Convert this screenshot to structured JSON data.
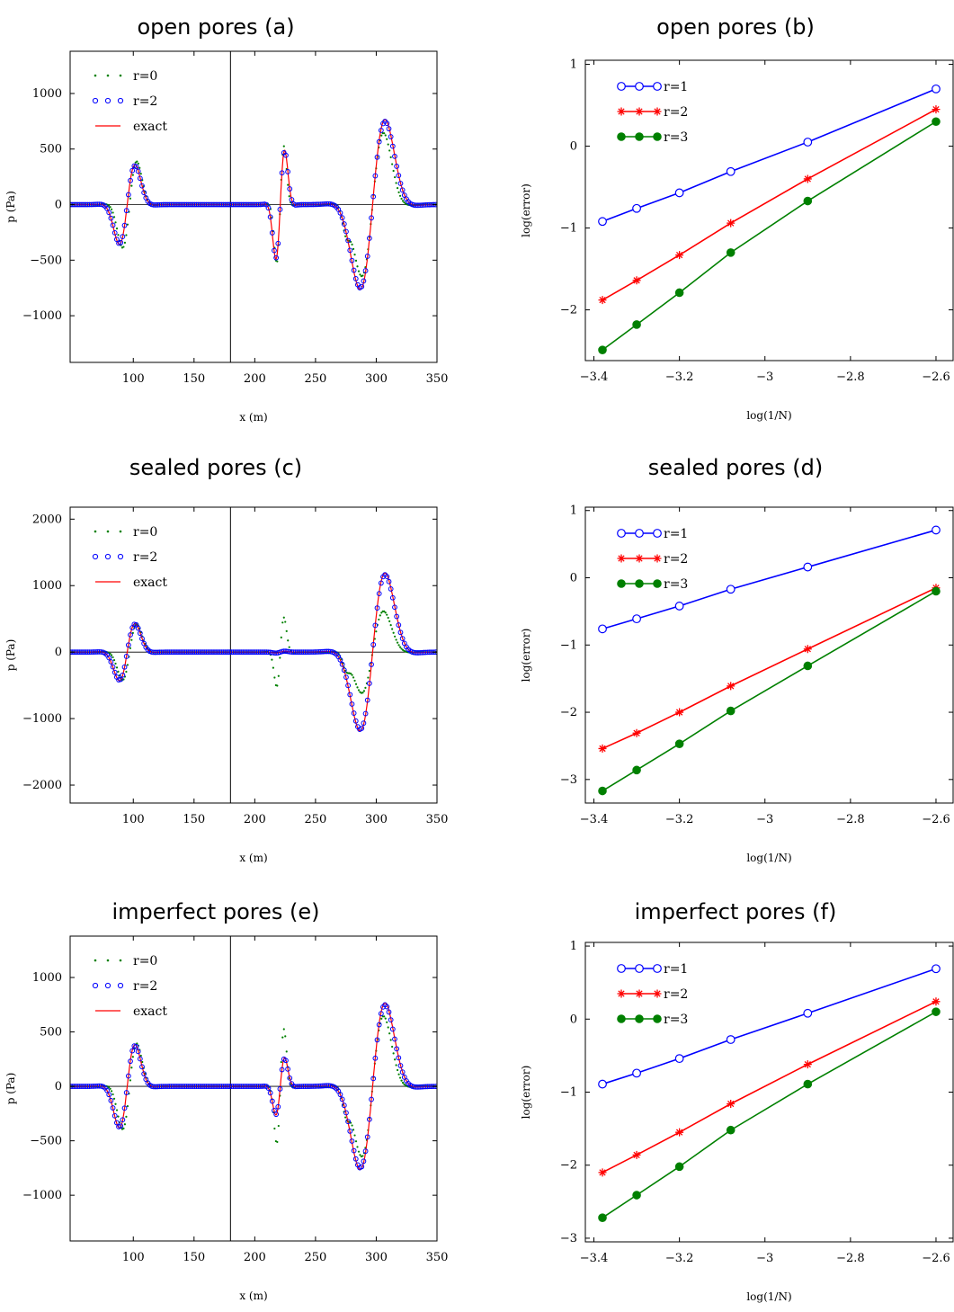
{
  "chart_data": [
    {
      "panel": "a",
      "type": "line",
      "title": "open pores (a)",
      "xlabel": "x (m)",
      "ylabel": "p (Pa)",
      "xlim": [
        48,
        350
      ],
      "ylim": [
        -1420,
        1380
      ],
      "xticks": [
        100,
        150,
        200,
        250,
        300,
        350
      ],
      "yticks": [
        -1000,
        -500,
        0,
        500,
        1000
      ],
      "vline_x": 180,
      "hline_y": 0,
      "legend_position": "top-left",
      "pulses": {
        "exact": [
          {
            "c": 95,
            "w": 7.5,
            "a": 600
          },
          {
            "c": 221,
            "w": 4.2,
            "a": 820
          },
          {
            "c": 297,
            "w": 12.0,
            "a": 1280
          }
        ],
        "r0": [
          {
            "c": 97,
            "w": 6.8,
            "a": 650
          },
          {
            "c": 221,
            "w": 3.5,
            "a": 880
          },
          {
            "c": 297,
            "w": 10.5,
            "a": 1080
          }
        ],
        "r0_extra": [
          {
            "c": 275,
            "a": -200,
            "w": 4
          }
        ],
        "r2_scale": 0.98
      },
      "series": [
        {
          "name": "r=0",
          "color": "#008000",
          "style": "dots"
        },
        {
          "name": "r=2",
          "color": "#0000ff",
          "style": "circles"
        },
        {
          "name": "exact",
          "color": "#ff0000",
          "style": "line"
        }
      ]
    },
    {
      "panel": "b",
      "type": "line",
      "title": "open pores (b)",
      "xlabel": "log(1/N)",
      "ylabel": "log(error)",
      "xlim": [
        -3.42,
        -2.56
      ],
      "ylim": [
        -2.62,
        1.05
      ],
      "xticks": [
        -3.4,
        -3.2,
        -3,
        -2.8,
        -2.6
      ],
      "xtick_labels": [
        "−3.4",
        "−3.2",
        "−3",
        "−2.8",
        "−2.6"
      ],
      "yticks": [
        -2,
        -1,
        0,
        1
      ],
      "ytick_labels": [
        "−2",
        "−1",
        "0",
        "1"
      ],
      "legend_position": "top-left",
      "x": [
        -3.38,
        -3.3,
        -3.2,
        -3.08,
        -2.9,
        -2.6
      ],
      "series": [
        {
          "name": "r=1",
          "color": "#0000ff",
          "marker": "circle-open",
          "values": [
            -0.92,
            -0.76,
            -0.57,
            -0.31,
            0.05,
            0.7
          ]
        },
        {
          "name": "r=2",
          "color": "#ff0000",
          "marker": "star",
          "values": [
            -1.88,
            -1.64,
            -1.33,
            -0.94,
            -0.4,
            0.45
          ]
        },
        {
          "name": "r=3",
          "color": "#008000",
          "marker": "circle-filled",
          "values": [
            -2.49,
            -2.18,
            -1.79,
            -1.3,
            -0.67,
            0.3
          ]
        }
      ]
    },
    {
      "panel": "c",
      "type": "line",
      "title": "sealed pores (c)",
      "xlabel": "x (m)",
      "ylabel": "p (Pa)",
      "xlim": [
        48,
        350
      ],
      "ylim": [
        -2270,
        2180
      ],
      "xticks": [
        100,
        150,
        200,
        250,
        300,
        350
      ],
      "yticks": [
        -2000,
        -1000,
        0,
        1000,
        2000
      ],
      "vline_x": 180,
      "hline_y": 0,
      "legend_position": "top-left",
      "pulses": {
        "exact": [
          {
            "c": 95,
            "w": 7.5,
            "a": 720
          },
          {
            "c": 221,
            "w": 4.2,
            "a": 25
          },
          {
            "c": 297,
            "w": 12.0,
            "a": 1990
          }
        ],
        "r0": [
          {
            "c": 97,
            "w": 6.8,
            "a": 700
          },
          {
            "c": 221,
            "w": 3.5,
            "a": 870
          },
          {
            "c": 297,
            "w": 10.5,
            "a": 1030
          }
        ],
        "r0_extra": [
          {
            "c": 275,
            "a": -200,
            "w": 4
          }
        ],
        "r2_scale": 0.98
      },
      "series": [
        {
          "name": "r=0",
          "color": "#008000",
          "style": "dots"
        },
        {
          "name": "r=2",
          "color": "#0000ff",
          "style": "circles"
        },
        {
          "name": "exact",
          "color": "#ff0000",
          "style": "line"
        }
      ]
    },
    {
      "panel": "d",
      "type": "line",
      "title": "sealed pores (d)",
      "xlabel": "log(1/N)",
      "ylabel": "log(error)",
      "xlim": [
        -3.42,
        -2.56
      ],
      "ylim": [
        -3.35,
        1.05
      ],
      "xticks": [
        -3.4,
        -3.2,
        -3,
        -2.8,
        -2.6
      ],
      "xtick_labels": [
        "−3.4",
        "−3.2",
        "−3",
        "−2.8",
        "−2.6"
      ],
      "yticks": [
        -3,
        -2,
        -1,
        0,
        1
      ],
      "ytick_labels": [
        "−3",
        "−2",
        "−1",
        "0",
        "1"
      ],
      "legend_position": "top-left",
      "x": [
        -3.38,
        -3.3,
        -3.2,
        -3.08,
        -2.9,
        -2.6
      ],
      "series": [
        {
          "name": "r=1",
          "color": "#0000ff",
          "marker": "circle-open",
          "values": [
            -0.76,
            -0.61,
            -0.42,
            -0.17,
            0.16,
            0.71
          ]
        },
        {
          "name": "r=2",
          "color": "#ff0000",
          "marker": "star",
          "values": [
            -2.54,
            -2.31,
            -2.0,
            -1.61,
            -1.06,
            -0.15
          ]
        },
        {
          "name": "r=3",
          "color": "#008000",
          "marker": "circle-filled",
          "values": [
            -3.17,
            -2.86,
            -2.47,
            -1.98,
            -1.31,
            -0.2
          ]
        }
      ]
    },
    {
      "panel": "e",
      "type": "line",
      "title": "imperfect pores (e)",
      "xlabel": "x (m)",
      "ylabel": "p (Pa)",
      "xlim": [
        48,
        350
      ],
      "ylim": [
        -1420,
        1380
      ],
      "xticks": [
        100,
        150,
        200,
        250,
        300,
        350
      ],
      "yticks": [
        -1000,
        -500,
        0,
        500,
        1000
      ],
      "vline_x": 180,
      "hline_y": 0,
      "legend_position": "top-left",
      "pulses": {
        "exact": [
          {
            "c": 95,
            "w": 7.5,
            "a": 640
          },
          {
            "c": 221,
            "w": 4.2,
            "a": 440
          },
          {
            "c": 297,
            "w": 12.0,
            "a": 1280
          }
        ],
        "r0": [
          {
            "c": 97,
            "w": 6.8,
            "a": 660
          },
          {
            "c": 221,
            "w": 3.5,
            "a": 880
          },
          {
            "c": 297,
            "w": 10.5,
            "a": 1080
          }
        ],
        "r0_extra": [
          {
            "c": 275,
            "a": -200,
            "w": 4
          }
        ],
        "r2_scale": 0.98
      },
      "series": [
        {
          "name": "r=0",
          "color": "#008000",
          "style": "dots"
        },
        {
          "name": "r=2",
          "color": "#0000ff",
          "style": "circles"
        },
        {
          "name": "exact",
          "color": "#ff0000",
          "style": "line"
        }
      ]
    },
    {
      "panel": "f",
      "type": "line",
      "title": "imperfect pores (f)",
      "xlabel": "log(1/N)",
      "ylabel": "log(error)",
      "xlim": [
        -3.42,
        -2.56
      ],
      "ylim": [
        -3.05,
        1.05
      ],
      "xticks": [
        -3.4,
        -3.2,
        -3,
        -2.8,
        -2.6
      ],
      "xtick_labels": [
        "−3.4",
        "−3.2",
        "−3",
        "−2.8",
        "−2.6"
      ],
      "yticks": [
        -3,
        -2,
        -1,
        0,
        1
      ],
      "ytick_labels": [
        "−3",
        "−2",
        "−1",
        "0",
        "1"
      ],
      "legend_position": "top-left",
      "x": [
        -3.38,
        -3.3,
        -3.2,
        -3.08,
        -2.9,
        -2.6
      ],
      "series": [
        {
          "name": "r=1",
          "color": "#0000ff",
          "marker": "circle-open",
          "values": [
            -0.89,
            -0.74,
            -0.54,
            -0.28,
            0.08,
            0.69
          ]
        },
        {
          "name": "r=2",
          "color": "#ff0000",
          "marker": "star",
          "values": [
            -2.1,
            -1.86,
            -1.55,
            -1.16,
            -0.62,
            0.24
          ]
        },
        {
          "name": "r=3",
          "color": "#008000",
          "marker": "circle-filled",
          "values": [
            -2.72,
            -2.41,
            -2.02,
            -1.52,
            -0.89,
            0.1
          ]
        }
      ]
    }
  ]
}
